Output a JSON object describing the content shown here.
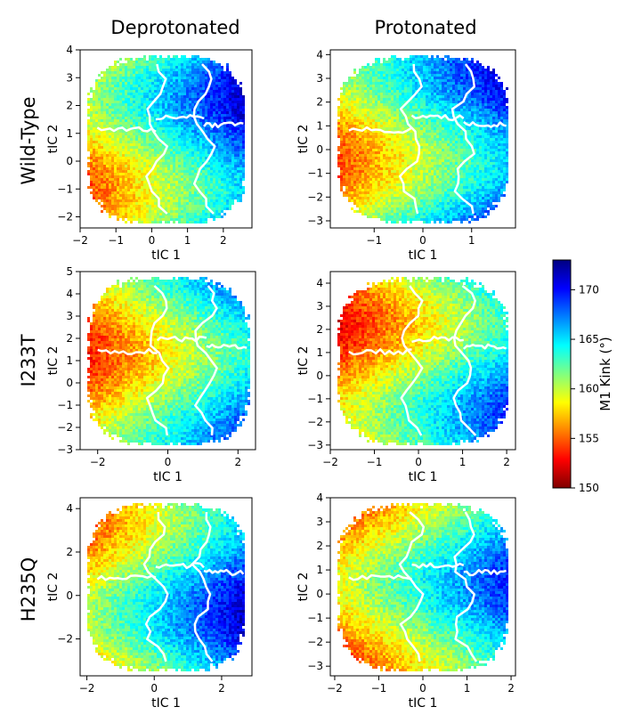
{
  "figure": {
    "column_titles": [
      "Deprotonated",
      "Protonated"
    ],
    "row_labels": [
      "Wild-Type",
      "I233T",
      "H235Q"
    ]
  },
  "colorbar": {
    "label": "M1 Kink (°)",
    "min": 150,
    "max": 173,
    "ticks": [
      150,
      155,
      160,
      165,
      170
    ],
    "colormap": "jet",
    "colors": [
      "#800000",
      "#ff0000",
      "#ff8000",
      "#ffff00",
      "#80ff80",
      "#00ffff",
      "#0080ff",
      "#0000ff",
      "#000080"
    ]
  },
  "chart_data": [
    {
      "type": "heatmap",
      "row": "Wild-Type",
      "column": "Deprotonated",
      "xlabel": "tIC 1",
      "ylabel": "tIC 2",
      "xlim": [
        -2.0,
        2.8
      ],
      "ylim": [
        -2.4,
        4.0
      ],
      "xticks": [
        -2,
        -1,
        0,
        1,
        2
      ],
      "yticks": [
        -2,
        -1,
        0,
        1,
        2,
        3,
        4
      ],
      "color_range_deg": [
        152,
        172
      ]
    },
    {
      "type": "heatmap",
      "row": "Wild-Type",
      "column": "Protonated",
      "xlabel": "tIC 1",
      "ylabel": "tIC 2",
      "xlim": [
        -1.9,
        1.9
      ],
      "ylim": [
        -3.3,
        4.2
      ],
      "xticks": [
        -1,
        0,
        1
      ],
      "yticks": [
        -3,
        -2,
        -1,
        0,
        1,
        2,
        3,
        4
      ],
      "color_range_deg": [
        152,
        172
      ]
    },
    {
      "type": "heatmap",
      "row": "I233T",
      "column": "Deprotonated",
      "xlabel": "tIC 1",
      "ylabel": "tIC 2",
      "xlim": [
        -2.5,
        2.5
      ],
      "ylim": [
        -3.0,
        5.0
      ],
      "xticks": [
        -2,
        0,
        2
      ],
      "yticks": [
        -3,
        -2,
        -1,
        0,
        1,
        2,
        3,
        4,
        5
      ],
      "color_range_deg": [
        151,
        170
      ]
    },
    {
      "type": "heatmap",
      "row": "I233T",
      "column": "Protonated",
      "xlabel": "tIC 1",
      "ylabel": "tIC 2",
      "xlim": [
        -2.0,
        2.2
      ],
      "ylim": [
        -3.2,
        4.5
      ],
      "xticks": [
        -2,
        -1,
        0,
        1,
        2
      ],
      "yticks": [
        -3,
        -2,
        -1,
        0,
        1,
        2,
        3,
        4
      ],
      "color_range_deg": [
        150,
        170
      ]
    },
    {
      "type": "heatmap",
      "row": "H235Q",
      "column": "Deprotonated",
      "xlabel": "tIC 1",
      "ylabel": "tIC 2",
      "xlim": [
        -2.2,
        2.9
      ],
      "ylim": [
        -3.7,
        4.5
      ],
      "xticks": [
        -2,
        0,
        2
      ],
      "yticks": [
        -2,
        0,
        2,
        4
      ],
      "color_range_deg": [
        152,
        172
      ]
    },
    {
      "type": "heatmap",
      "row": "H235Q",
      "column": "Protonated",
      "xlabel": "tIC 1",
      "ylabel": "tIC 2",
      "xlim": [
        -2.1,
        2.1
      ],
      "ylim": [
        -3.4,
        4.0
      ],
      "xticks": [
        -2,
        -1,
        0,
        1,
        2
      ],
      "yticks": [
        -3,
        -2,
        -1,
        0,
        1,
        2,
        3,
        4
      ],
      "color_range_deg": [
        151,
        170
      ]
    }
  ]
}
